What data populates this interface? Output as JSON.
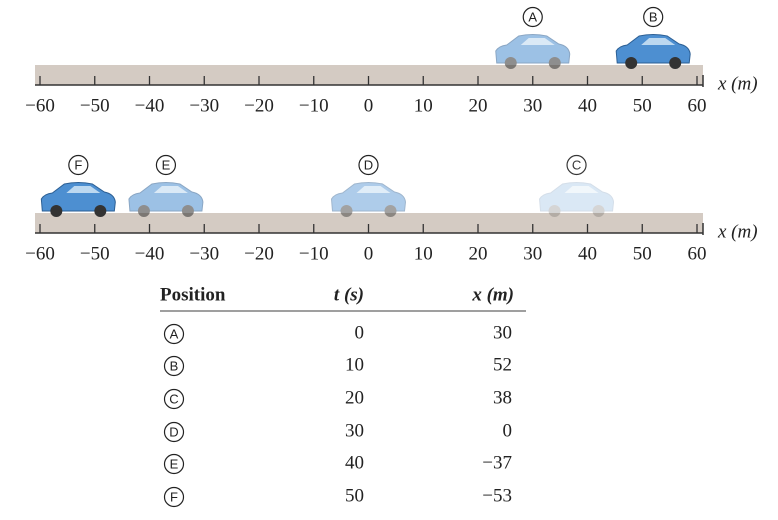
{
  "number_lines": [
    {
      "tick_labels": [
        "−60",
        "−50",
        "−40",
        "−30",
        "−20",
        "−10",
        "0",
        "10",
        "20",
        "30",
        "40",
        "50",
        "60"
      ],
      "axis_label": "x (m)"
    },
    {
      "tick_labels": [
        "−60",
        "−50",
        "−40",
        "−30",
        "−20",
        "−10",
        "0",
        "10",
        "20",
        "30",
        "40",
        "50",
        "60"
      ],
      "axis_label": "x (m)"
    }
  ],
  "table": {
    "header": [
      "Position",
      "t (s)",
      "x (m)"
    ],
    "rows": [
      [
        "A",
        "0",
        "30"
      ],
      [
        "B",
        "10",
        "52"
      ],
      [
        "C",
        "20",
        "38"
      ],
      [
        "D",
        "30",
        "0"
      ],
      [
        "E",
        "40",
        "−37"
      ],
      [
        "F",
        "50",
        "−53"
      ]
    ]
  }
}
